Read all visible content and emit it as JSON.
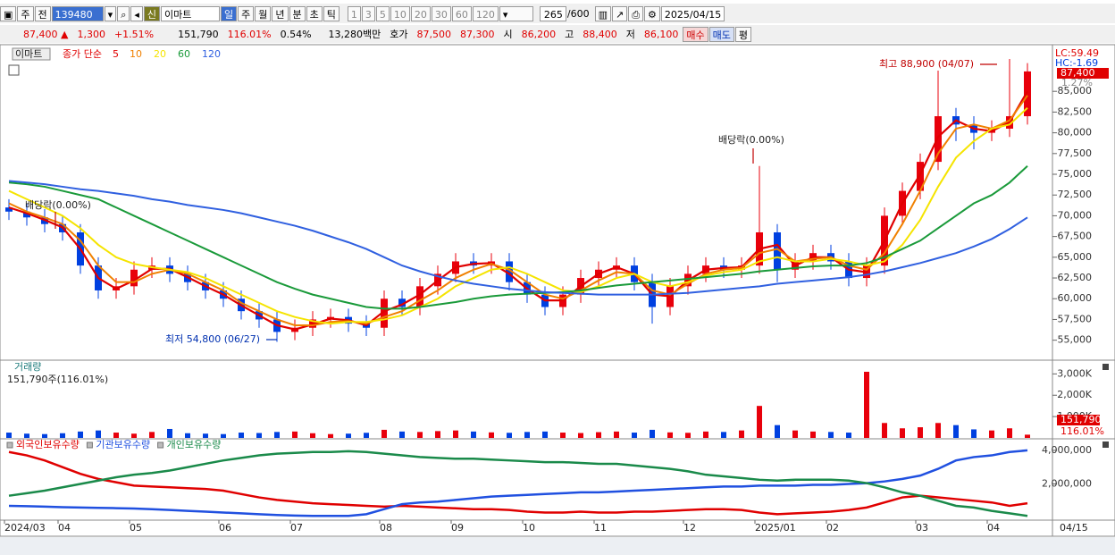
{
  "toolbar": {
    "market": "주",
    "prev": "전",
    "code": "139480",
    "new": "신",
    "name": "이마트",
    "periods": [
      "일",
      "주",
      "월",
      "년",
      "분",
      "초",
      "틱"
    ],
    "intervals": [
      "1",
      "3",
      "5",
      "10",
      "20",
      "30",
      "60",
      "120"
    ],
    "count": "265",
    "max": "/600",
    "date": "2025/04/15"
  },
  "quote": {
    "price": "87,400 ▲",
    "change": "1,300",
    "rate": "+1.51%",
    "volume": "151,790",
    "volume_rate": "116.01%",
    "turnover": "0.54%",
    "amount": "13,280백만",
    "bid_label": "호가",
    "ask": "87,500",
    "bid": "87,300",
    "open_label": "시",
    "open": "86,200",
    "high_label": "고",
    "high": "88,400",
    "low_label": "저",
    "low": "86,100",
    "buy": "매수",
    "sell": "매도",
    "avg": "평"
  },
  "chart_data": [
    {
      "type": "candlestick",
      "name": "이마트",
      "legend_title": "종가 단순",
      "categories": [
        "2024/03",
        null,
        null,
        "04",
        null,
        null,
        null,
        "05",
        null,
        null,
        null,
        null,
        "06",
        null,
        null,
        null,
        "07",
        null,
        null,
        null,
        null,
        "08",
        null,
        null,
        null,
        "09",
        null,
        null,
        null,
        "10",
        null,
        null,
        null,
        "11",
        null,
        null,
        null,
        null,
        "12",
        null,
        null,
        null,
        "2025/01",
        null,
        null,
        null,
        "02",
        null,
        null,
        null,
        null,
        "03",
        null,
        null,
        null,
        "04",
        null,
        null
      ],
      "open": [
        71000,
        70500,
        69800,
        69000,
        68000,
        64000,
        61000,
        61500,
        63500,
        64000,
        63000,
        62000,
        61000,
        60000,
        58500,
        57500,
        56000,
        56500,
        57500,
        57800,
        57000,
        56500,
        60000,
        59000,
        61500,
        63000,
        64500,
        64000,
        64500,
        62000,
        60500,
        59000,
        60500,
        62500,
        63500,
        64000,
        62000,
        59000,
        61500,
        63000,
        64000,
        63500,
        64000,
        68000,
        63500,
        64500,
        65500,
        64500,
        62500,
        64000,
        70000,
        73000,
        76500,
        82000,
        81000,
        80000,
        80500,
        82000
      ],
      "high": [
        72000,
        71500,
        70800,
        70000,
        69000,
        65000,
        62500,
        64500,
        65000,
        65000,
        64000,
        63000,
        62000,
        61000,
        59500,
        58500,
        57500,
        58500,
        58800,
        58800,
        58000,
        61000,
        61000,
        62500,
        64000,
        65500,
        65500,
        65500,
        65500,
        63000,
        61500,
        61500,
        63500,
        64500,
        65000,
        65000,
        63000,
        62500,
        64000,
        65000,
        65000,
        65000,
        76000,
        69000,
        65500,
        66500,
        66500,
        65500,
        65000,
        71000,
        74000,
        77500,
        87500,
        83000,
        82000,
        81500,
        88900,
        88400
      ],
      "low": [
        69500,
        68800,
        68000,
        67000,
        63000,
        60000,
        60000,
        60500,
        62500,
        62000,
        61000,
        60000,
        59000,
        57500,
        56500,
        54800,
        55000,
        55500,
        56500,
        56000,
        55500,
        55500,
        58000,
        58000,
        60500,
        62000,
        63000,
        63000,
        61000,
        59500,
        58000,
        58000,
        59500,
        61500,
        62500,
        61000,
        57000,
        58000,
        60500,
        62000,
        62500,
        62500,
        63000,
        62000,
        62500,
        63500,
        63500,
        61500,
        61500,
        63000,
        69000,
        72000,
        75500,
        79000,
        78000,
        79000,
        79500,
        81000
      ],
      "close": [
        70500,
        69800,
        69000,
        68000,
        64000,
        61000,
        61500,
        63500,
        64000,
        63000,
        62000,
        61000,
        60000,
        58500,
        57500,
        56000,
        56500,
        57500,
        57800,
        57000,
        56500,
        60000,
        59000,
        61500,
        63000,
        64500,
        64000,
        64500,
        62000,
        60500,
        59000,
        60500,
        62500,
        63500,
        64000,
        62000,
        59000,
        61500,
        63000,
        64000,
        63500,
        64000,
        68000,
        63500,
        64500,
        65500,
        64500,
        62500,
        64000,
        70000,
        73000,
        76500,
        82000,
        81000,
        80000,
        80500,
        82000,
        87400
      ],
      "up_color": "#e8000b",
      "down_color": "#0040e0",
      "series": [
        {
          "name": "5",
          "color": "#e00000",
          "values": [
            71000,
            70300,
            69500,
            68600,
            66000,
            62500,
            61200,
            62200,
            63600,
            63600,
            62600,
            61500,
            60500,
            59200,
            58000,
            56800,
            56300,
            56900,
            57600,
            57400,
            56800,
            58500,
            59300,
            60500,
            62200,
            63800,
            64200,
            64300,
            63000,
            61200,
            59800,
            59800,
            61500,
            63000,
            63800,
            63000,
            60500,
            60300,
            62200,
            63500,
            63700,
            63800,
            66000,
            66500,
            64000,
            65000,
            65000,
            63500,
            63200,
            67000,
            71500,
            75000,
            79500,
            81500,
            80500,
            80200,
            81300,
            85000
          ]
        },
        {
          "name": "10",
          "color": "#f08000",
          "values": [
            71500,
            70500,
            69800,
            69000,
            67000,
            64000,
            62000,
            62000,
            63000,
            63500,
            63000,
            62000,
            61000,
            59500,
            58500,
            57500,
            56800,
            56800,
            57200,
            57300,
            57000,
            57800,
            58500,
            59800,
            61000,
            62500,
            63500,
            64200,
            63500,
            62000,
            60500,
            60000,
            61000,
            62200,
            63200,
            63000,
            61000,
            60500,
            61800,
            63000,
            63500,
            63700,
            65500,
            66000,
            64500,
            64800,
            65000,
            64000,
            63500,
            65500,
            69000,
            73000,
            77500,
            80500,
            81000,
            80500,
            81500,
            84500
          ]
        },
        {
          "name": "20",
          "color": "#f5e400",
          "values": [
            73000,
            72000,
            71000,
            70000,
            68500,
            66500,
            65000,
            64200,
            63800,
            63500,
            63200,
            62500,
            61500,
            60500,
            59500,
            58500,
            57800,
            57300,
            57000,
            57200,
            57200,
            57500,
            58000,
            59000,
            60000,
            61500,
            62500,
            63500,
            63800,
            63000,
            62000,
            61000,
            60800,
            61500,
            62500,
            63000,
            62000,
            61500,
            62000,
            62800,
            63200,
            63500,
            64500,
            65000,
            64500,
            64500,
            64800,
            64500,
            64000,
            64500,
            66500,
            69500,
            73500,
            77000,
            79000,
            80500,
            81000,
            83000
          ]
        },
        {
          "name": "60",
          "color": "#1a9a3a",
          "values": [
            74000,
            73800,
            73500,
            73000,
            72500,
            72000,
            71000,
            70000,
            69000,
            68000,
            67000,
            66000,
            65000,
            64000,
            63000,
            62000,
            61200,
            60500,
            60000,
            59500,
            59000,
            58800,
            58800,
            59000,
            59300,
            59600,
            60000,
            60300,
            60500,
            60600,
            60700,
            60800,
            61000,
            61300,
            61600,
            61800,
            62000,
            62200,
            62400,
            62600,
            62800,
            63000,
            63300,
            63500,
            63700,
            63900,
            64000,
            64000,
            64300,
            65000,
            66000,
            67000,
            68500,
            70000,
            71500,
            72500,
            74000,
            76000
          ]
        },
        {
          "name": "120",
          "color": "#3060e0",
          "values": [
            74200,
            74000,
            73800,
            73500,
            73200,
            73000,
            72700,
            72400,
            72000,
            71700,
            71300,
            71000,
            70700,
            70300,
            69800,
            69300,
            68800,
            68200,
            67500,
            66800,
            66000,
            65000,
            64000,
            63300,
            62700,
            62200,
            61800,
            61500,
            61200,
            61000,
            60800,
            60700,
            60600,
            60500,
            60500,
            60500,
            60500,
            60600,
            60700,
            60900,
            61100,
            61300,
            61500,
            61800,
            62000,
            62200,
            62400,
            62600,
            62900,
            63300,
            63800,
            64300,
            64900,
            65500,
            66300,
            67200,
            68400,
            69800
          ]
        }
      ],
      "ylim": [
        52700,
        90300
      ],
      "yticks": [
        {
          "value": 55000,
          "label": "55,000"
        },
        {
          "value": 57500,
          "label": "57,500"
        },
        {
          "value": 60000,
          "label": "60,000"
        },
        {
          "value": 62500,
          "label": "62,500"
        },
        {
          "value": 65000,
          "label": "65,000"
        },
        {
          "value": 67500,
          "label": "67,500"
        },
        {
          "value": 70000,
          "label": "70,000"
        },
        {
          "value": 72500,
          "label": "72,500"
        },
        {
          "value": 75000,
          "label": "75,000"
        },
        {
          "value": 77500,
          "label": "77,500"
        },
        {
          "value": 80000,
          "label": "80,000"
        },
        {
          "value": 82500,
          "label": "82,500"
        },
        {
          "value": 85000,
          "label": "85,000"
        }
      ],
      "annotations": [
        "최고 88,900 (04/07)",
        "최저 54,800 (06/27)",
        "배당락(0.00%)",
        "배당락(0.00%)"
      ],
      "indicators": [
        "LC:59.49",
        "HC:-1.69",
        "1.27%"
      ],
      "last_label": "87,400",
      "x_end_label": "04/15"
    },
    {
      "type": "bar",
      "title": "거래량",
      "subtitle": "151,790주(116.01%)",
      "values": [
        250000,
        200000,
        180000,
        220000,
        300000,
        350000,
        250000,
        200000,
        280000,
        420000,
        220000,
        200000,
        180000,
        250000,
        230000,
        280000,
        300000,
        220000,
        180000,
        200000,
        240000,
        380000,
        300000,
        280000,
        320000,
        350000,
        300000,
        260000,
        240000,
        280000,
        300000,
        250000,
        230000,
        270000,
        300000,
        250000,
        380000,
        260000,
        240000,
        300000,
        280000,
        350000,
        1500000,
        600000,
        350000,
        300000,
        280000,
        250000,
        3100000,
        700000,
        450000,
        500000,
        700000,
        600000,
        400000,
        350000,
        450000,
        151790
      ],
      "ylim": [
        0,
        3560000
      ],
      "yticks": [
        {
          "value": 1000000,
          "label": "1,000K"
        },
        {
          "value": 2000000,
          "label": "2,000K"
        },
        {
          "value": 3000000,
          "label": "3,000K"
        }
      ],
      "last_label": "151,790",
      "last_rate": "116.01%"
    },
    {
      "type": "line",
      "series": [
        {
          "name": "외국인보유수량",
          "color": "#e00000",
          "values": [
            3900000,
            3700000,
            3400000,
            3000000,
            2600000,
            2300000,
            2100000,
            1900000,
            1850000,
            1800000,
            1750000,
            1700000,
            1600000,
            1400000,
            1200000,
            1050000,
            950000,
            850000,
            800000,
            750000,
            700000,
            650000,
            700000,
            650000,
            600000,
            550000,
            500000,
            500000,
            450000,
            350000,
            300000,
            300000,
            350000,
            300000,
            300000,
            350000,
            350000,
            400000,
            450000,
            500000,
            500000,
            450000,
            300000,
            200000,
            250000,
            300000,
            350000,
            450000,
            600000,
            900000,
            1200000,
            1300000,
            1200000,
            1100000,
            1000000,
            900000,
            700000,
            850000
          ]
        },
        {
          "name": "기관보유수량",
          "color": "#2050e0",
          "values": [
            700000,
            680000,
            650000,
            620000,
            600000,
            580000,
            560000,
            540000,
            500000,
            450000,
            400000,
            350000,
            300000,
            250000,
            200000,
            150000,
            120000,
            100000,
            100000,
            100000,
            200000,
            500000,
            800000,
            900000,
            950000,
            1050000,
            1150000,
            1250000,
            1300000,
            1350000,
            1400000,
            1450000,
            1500000,
            1500000,
            1550000,
            1600000,
            1650000,
            1700000,
            1750000,
            1800000,
            1850000,
            1850000,
            1900000,
            1900000,
            1900000,
            1950000,
            1950000,
            2000000,
            2050000,
            2150000,
            2300000,
            2500000,
            2900000,
            3400000,
            3600000,
            3700000,
            3900000,
            4000000
          ]
        },
        {
          "name": "개인보유수량",
          "color": "#1a8a4a",
          "values": [
            1300000,
            1450000,
            1600000,
            1800000,
            2000000,
            2200000,
            2400000,
            2550000,
            2650000,
            2800000,
            3000000,
            3200000,
            3400000,
            3550000,
            3700000,
            3800000,
            3850000,
            3900000,
            3900000,
            3950000,
            3900000,
            3800000,
            3700000,
            3600000,
            3550000,
            3500000,
            3500000,
            3450000,
            3400000,
            3350000,
            3300000,
            3300000,
            3250000,
            3200000,
            3200000,
            3100000,
            3000000,
            2900000,
            2750000,
            2550000,
            2450000,
            2350000,
            2250000,
            2200000,
            2250000,
            2250000,
            2250000,
            2200000,
            2050000,
            1800000,
            1500000,
            1300000,
            1000000,
            700000,
            600000,
            400000,
            250000,
            100000
          ]
        }
      ],
      "ylim": [
        -100000,
        4580000
      ],
      "yticks": [
        {
          "value": 2000000,
          "label": "2,000,000"
        },
        {
          "value": 4000000,
          "label": "4,000,000"
        }
      ]
    }
  ]
}
